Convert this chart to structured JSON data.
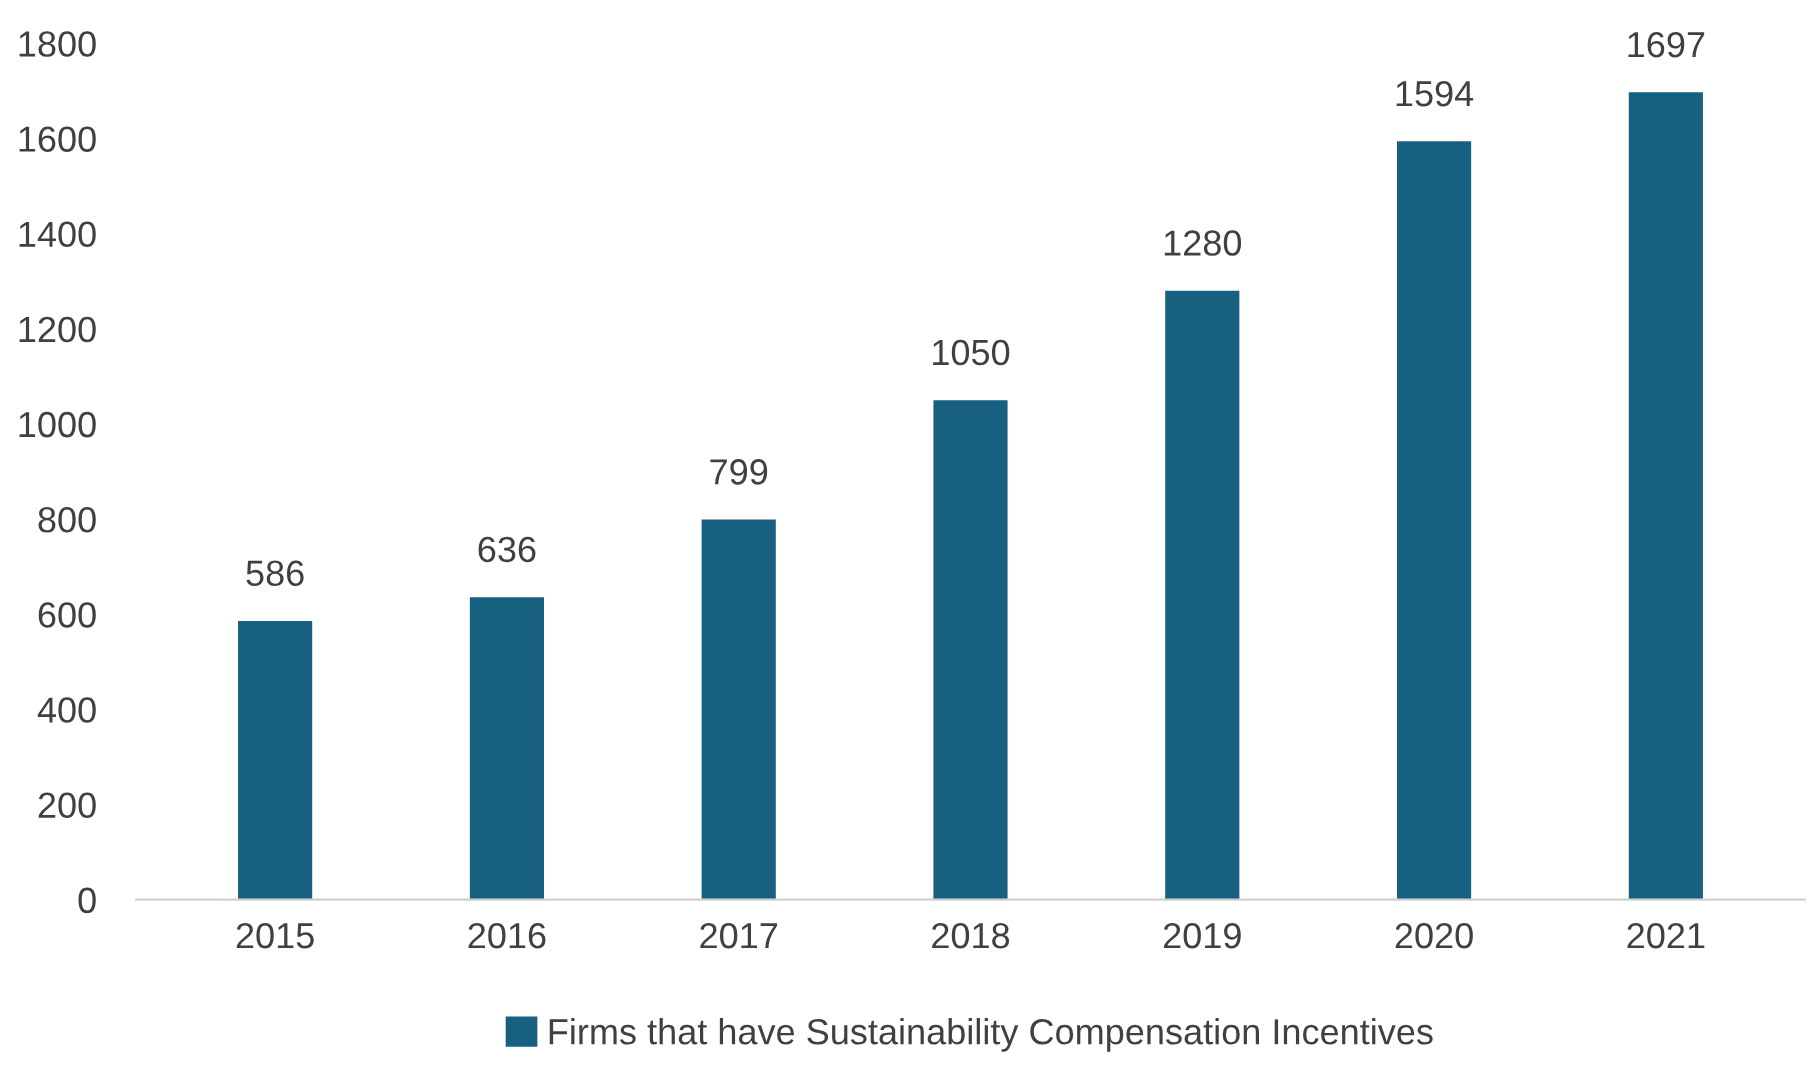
{
  "chart_data": {
    "type": "bar",
    "categories": [
      "2015",
      "2016",
      "2017",
      "2018",
      "2019",
      "2020",
      "2021"
    ],
    "series": [
      {
        "name": "Firms that have Sustainability Compensation Incentives",
        "color": "#17607f",
        "values": [
          586,
          636,
          799,
          1050,
          1280,
          1594,
          1697
        ]
      }
    ],
    "ylim": [
      0,
      1800
    ],
    "yticks": [
      0,
      200,
      400,
      600,
      800,
      1000,
      1200,
      1400,
      1600,
      1800
    ],
    "grid": false,
    "legend": "bottom",
    "data_labels": true
  }
}
